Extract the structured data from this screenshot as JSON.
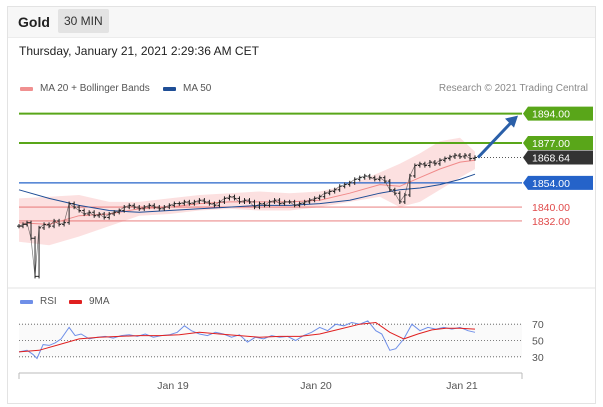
{
  "header": {
    "instrument": "Gold",
    "timeframe": "30 MIN"
  },
  "datetime": "Thursday, January 21, 2021 2:29:36 AM CET",
  "copyright": "Research © 2021 Trading Central",
  "colors": {
    "resistance": "#59a619",
    "support": "#2563c9",
    "current": "#333333",
    "minor_level": "#e04a4a",
    "ma20": "#f08a8a",
    "bands": "#fbd6d6",
    "ma50": "#1f4e96",
    "price": "#222222",
    "rsi": "#6f8fe8",
    "rsi_ma": "#e02020",
    "arrow": "#2a5fa8"
  },
  "chart_data": [
    {
      "type": "line",
      "title": "Gold 30 MIN",
      "ylim": [
        1795,
        1903
      ],
      "x_ticks": [
        "Jan 19",
        "Jan 20",
        "Jan 21"
      ],
      "legend": [
        {
          "key": "ma20",
          "label": "MA 20 + Bollinger Bands"
        },
        {
          "key": "ma50",
          "label": "MA 50"
        }
      ],
      "levels": [
        {
          "value": 1894.0,
          "label": "1894.00",
          "kind": "resistance"
        },
        {
          "value": 1877.0,
          "label": "1877.00",
          "kind": "resistance"
        },
        {
          "value": 1868.64,
          "label": "1868.64",
          "kind": "current"
        },
        {
          "value": 1854.0,
          "label": "1854.00",
          "kind": "support"
        },
        {
          "value": 1840.0,
          "label": "1840.00",
          "kind": "minor"
        },
        {
          "value": 1832.0,
          "label": "1832.00",
          "kind": "minor"
        }
      ],
      "arrow": {
        "from": 1868.64,
        "to": 1894.0,
        "direction": "up"
      },
      "price": [
        [
          0,
          1829
        ],
        [
          4,
          1830
        ],
        [
          8,
          1831
        ],
        [
          12,
          1822
        ],
        [
          16,
          1800
        ],
        [
          20,
          1828
        ],
        [
          25,
          1830
        ],
        [
          30,
          1829
        ],
        [
          35,
          1832
        ],
        [
          40,
          1830
        ],
        [
          45,
          1831
        ],
        [
          50,
          1842
        ],
        [
          55,
          1840
        ],
        [
          60,
          1838
        ],
        [
          65,
          1836
        ],
        [
          70,
          1837
        ],
        [
          75,
          1835
        ],
        [
          80,
          1836
        ],
        [
          85,
          1834
        ],
        [
          90,
          1836
        ],
        [
          95,
          1837
        ],
        [
          100,
          1838
        ],
        [
          105,
          1840
        ],
        [
          110,
          1841
        ],
        [
          115,
          1840
        ],
        [
          120,
          1839
        ],
        [
          125,
          1840
        ],
        [
          130,
          1841
        ],
        [
          135,
          1840
        ],
        [
          140,
          1839
        ],
        [
          145,
          1840
        ],
        [
          150,
          1841
        ],
        [
          155,
          1842
        ],
        [
          160,
          1842
        ],
        [
          165,
          1843
        ],
        [
          170,
          1842
        ],
        [
          175,
          1843
        ],
        [
          180,
          1844
        ],
        [
          185,
          1843
        ],
        [
          190,
          1842
        ],
        [
          195,
          1841
        ],
        [
          200,
          1843
        ],
        [
          205,
          1845
        ],
        [
          210,
          1846
        ],
        [
          215,
          1845
        ],
        [
          220,
          1843
        ],
        [
          225,
          1844
        ],
        [
          230,
          1843
        ],
        [
          235,
          1840
        ],
        [
          240,
          1842
        ],
        [
          245,
          1841
        ],
        [
          250,
          1843
        ],
        [
          255,
          1844
        ],
        [
          260,
          1842
        ],
        [
          265,
          1843
        ],
        [
          270,
          1843
        ],
        [
          275,
          1841
        ],
        [
          280,
          1842
        ],
        [
          285,
          1843
        ],
        [
          290,
          1844
        ],
        [
          295,
          1845
        ],
        [
          300,
          1846
        ],
        [
          305,
          1848
        ],
        [
          310,
          1849
        ],
        [
          315,
          1850
        ],
        [
          320,
          1852
        ],
        [
          325,
          1853
        ],
        [
          330,
          1854
        ],
        [
          335,
          1856
        ],
        [
          340,
          1857
        ],
        [
          345,
          1858
        ],
        [
          350,
          1857
        ],
        [
          355,
          1856
        ],
        [
          360,
          1857
        ],
        [
          365,
          1855
        ],
        [
          370,
          1850
        ],
        [
          375,
          1848
        ],
        [
          380,
          1843
        ],
        [
          385,
          1847
        ],
        [
          390,
          1858
        ],
        [
          395,
          1864
        ],
        [
          400,
          1865
        ],
        [
          405,
          1864
        ],
        [
          410,
          1866
        ],
        [
          415,
          1865
        ],
        [
          420,
          1867
        ],
        [
          425,
          1868
        ],
        [
          430,
          1869
        ],
        [
          435,
          1870
        ],
        [
          440,
          1869
        ],
        [
          445,
          1870
        ],
        [
          450,
          1868
        ],
        [
          455,
          1868.64
        ]
      ],
      "ma20": [
        [
          0,
          1831
        ],
        [
          30,
          1830
        ],
        [
          60,
          1835
        ],
        [
          90,
          1836
        ],
        [
          120,
          1839
        ],
        [
          150,
          1840
        ],
        [
          180,
          1842
        ],
        [
          210,
          1843
        ],
        [
          240,
          1843
        ],
        [
          270,
          1843
        ],
        [
          300,
          1844
        ],
        [
          330,
          1848
        ],
        [
          360,
          1853
        ],
        [
          380,
          1852
        ],
        [
          400,
          1857
        ],
        [
          420,
          1862
        ],
        [
          440,
          1866
        ],
        [
          455,
          1867
        ]
      ],
      "ma50": [
        [
          0,
          1850
        ],
        [
          30,
          1845
        ],
        [
          60,
          1841
        ],
        [
          90,
          1838
        ],
        [
          120,
          1837
        ],
        [
          150,
          1838
        ],
        [
          180,
          1839
        ],
        [
          210,
          1840
        ],
        [
          240,
          1841
        ],
        [
          270,
          1841
        ],
        [
          300,
          1842
        ],
        [
          330,
          1844
        ],
        [
          360,
          1848
        ],
        [
          380,
          1850
        ],
        [
          400,
          1851
        ],
        [
          420,
          1853
        ],
        [
          440,
          1856
        ],
        [
          455,
          1859
        ]
      ],
      "band_upper": [
        [
          0,
          1845
        ],
        [
          30,
          1846
        ],
        [
          60,
          1847
        ],
        [
          90,
          1843
        ],
        [
          120,
          1843
        ],
        [
          150,
          1845
        ],
        [
          180,
          1847
        ],
        [
          210,
          1848
        ],
        [
          240,
          1849
        ],
        [
          270,
          1848
        ],
        [
          300,
          1849
        ],
        [
          330,
          1853
        ],
        [
          360,
          1860
        ],
        [
          380,
          1865
        ],
        [
          400,
          1871
        ],
        [
          420,
          1878
        ],
        [
          440,
          1880
        ],
        [
          455,
          1872
        ]
      ],
      "band_lower": [
        [
          0,
          1820
        ],
        [
          30,
          1818
        ],
        [
          60,
          1823
        ],
        [
          90,
          1829
        ],
        [
          120,
          1835
        ],
        [
          150,
          1836
        ],
        [
          180,
          1838
        ],
        [
          210,
          1839
        ],
        [
          240,
          1838
        ],
        [
          270,
          1838
        ],
        [
          300,
          1840
        ],
        [
          330,
          1843
        ],
        [
          360,
          1846
        ],
        [
          380,
          1840
        ],
        [
          400,
          1843
        ],
        [
          420,
          1850
        ],
        [
          440,
          1857
        ],
        [
          455,
          1862
        ]
      ]
    },
    {
      "type": "line",
      "title": "RSI",
      "ylim": [
        20,
        80
      ],
      "y_ticks": [
        30,
        50,
        70
      ],
      "legend": [
        {
          "key": "rsi",
          "label": "RSI"
        },
        {
          "key": "rsi_ma",
          "label": "9MA"
        }
      ],
      "rsi": [
        [
          0,
          36
        ],
        [
          8,
          38
        ],
        [
          14,
          33
        ],
        [
          18,
          28
        ],
        [
          24,
          45
        ],
        [
          30,
          44
        ],
        [
          36,
          47
        ],
        [
          42,
          52
        ],
        [
          50,
          66
        ],
        [
          56,
          56
        ],
        [
          62,
          58
        ],
        [
          70,
          52
        ],
        [
          78,
          54
        ],
        [
          86,
          55
        ],
        [
          94,
          53
        ],
        [
          102,
          56
        ],
        [
          110,
          57
        ],
        [
          118,
          55
        ],
        [
          126,
          58
        ],
        [
          134,
          54
        ],
        [
          142,
          56
        ],
        [
          150,
          57
        ],
        [
          158,
          60
        ],
        [
          165,
          68
        ],
        [
          172,
          62
        ],
        [
          180,
          58
        ],
        [
          188,
          56
        ],
        [
          196,
          60
        ],
        [
          204,
          58
        ],
        [
          212,
          54
        ],
        [
          220,
          57
        ],
        [
          228,
          48
        ],
        [
          236,
          54
        ],
        [
          244,
          52
        ],
        [
          252,
          56
        ],
        [
          260,
          54
        ],
        [
          268,
          55
        ],
        [
          276,
          50
        ],
        [
          284,
          56
        ],
        [
          292,
          60
        ],
        [
          300,
          66
        ],
        [
          308,
          62
        ],
        [
          316,
          70
        ],
        [
          324,
          68
        ],
        [
          332,
          72
        ],
        [
          340,
          70
        ],
        [
          348,
          74
        ],
        [
          356,
          62
        ],
        [
          362,
          58
        ],
        [
          370,
          38
        ],
        [
          376,
          40
        ],
        [
          384,
          52
        ],
        [
          392,
          70
        ],
        [
          400,
          62
        ],
        [
          408,
          66
        ],
        [
          416,
          64
        ],
        [
          424,
          66
        ],
        [
          432,
          64
        ],
        [
          440,
          66
        ],
        [
          448,
          62
        ],
        [
          455,
          60
        ]
      ],
      "rsi_ma": [
        [
          0,
          36
        ],
        [
          20,
          38
        ],
        [
          40,
          45
        ],
        [
          60,
          52
        ],
        [
          80,
          54
        ],
        [
          100,
          55
        ],
        [
          120,
          56
        ],
        [
          140,
          56
        ],
        [
          160,
          57
        ],
        [
          180,
          60
        ],
        [
          200,
          58
        ],
        [
          220,
          56
        ],
        [
          240,
          54
        ],
        [
          260,
          55
        ],
        [
          280,
          55
        ],
        [
          300,
          58
        ],
        [
          320,
          64
        ],
        [
          340,
          70
        ],
        [
          356,
          72
        ],
        [
          370,
          60
        ],
        [
          384,
          52
        ],
        [
          398,
          58
        ],
        [
          412,
          63
        ],
        [
          426,
          65
        ],
        [
          440,
          65
        ],
        [
          455,
          64
        ]
      ]
    }
  ]
}
